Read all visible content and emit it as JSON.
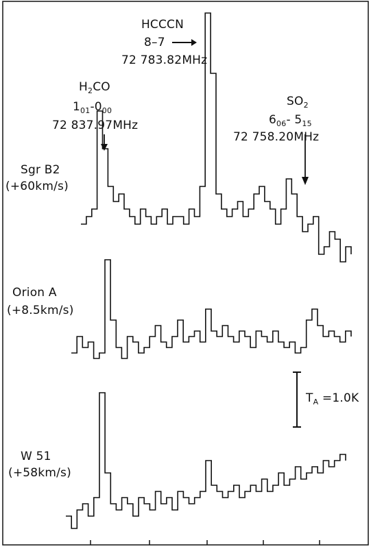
{
  "chart_data": {
    "type": "line",
    "title": "",
    "xlabel": "",
    "ylabel": "",
    "series": [
      {
        "name": "Sgr B2",
        "velocity": "(+60km/s)",
        "x": [
          0.0,
          0.02,
          0.04,
          0.06,
          0.08,
          0.1,
          0.12,
          0.14,
          0.16,
          0.18,
          0.2,
          0.22,
          0.24,
          0.26,
          0.28,
          0.3,
          0.32,
          0.34,
          0.36,
          0.38,
          0.4,
          0.42,
          0.44,
          0.46,
          0.48,
          0.5,
          0.52,
          0.54,
          0.56,
          0.58,
          0.6,
          0.62,
          0.64,
          0.66,
          0.68,
          0.7,
          0.72,
          0.74,
          0.76,
          0.78,
          0.8,
          0.82,
          0.84,
          0.86,
          0.88,
          0.9,
          0.92,
          0.94,
          0.96,
          0.98,
          1.0
        ],
        "values": [
          0.1,
          0.2,
          0.3,
          1.6,
          1.1,
          0.6,
          0.4,
          0.5,
          0.3,
          0.2,
          0.1,
          0.3,
          0.2,
          0.1,
          0.2,
          0.3,
          0.1,
          0.2,
          0.2,
          0.1,
          0.3,
          0.2,
          0.6,
          2.9,
          2.1,
          0.5,
          0.3,
          0.2,
          0.3,
          0.4,
          0.2,
          0.3,
          0.5,
          0.6,
          0.4,
          0.3,
          0.1,
          0.3,
          0.7,
          0.5,
          0.2,
          0.0,
          0.1,
          0.2,
          -0.3,
          -0.2,
          0.0,
          -0.1,
          -0.4,
          -0.2,
          -0.3
        ]
      },
      {
        "name": "Orion A",
        "velocity": "(+8.5km/s)",
        "x": [
          0.0,
          0.02,
          0.04,
          0.06,
          0.08,
          0.1,
          0.12,
          0.14,
          0.16,
          0.18,
          0.2,
          0.22,
          0.24,
          0.26,
          0.28,
          0.3,
          0.32,
          0.34,
          0.36,
          0.38,
          0.4,
          0.42,
          0.44,
          0.46,
          0.48,
          0.5,
          0.52,
          0.54,
          0.56,
          0.58,
          0.6,
          0.62,
          0.64,
          0.66,
          0.68,
          0.7,
          0.72,
          0.74,
          0.76,
          0.78,
          0.8,
          0.82,
          0.84,
          0.86,
          0.88,
          0.9,
          0.92,
          0.94,
          0.96,
          0.98,
          1.0
        ],
        "values": [
          0.0,
          0.3,
          0.1,
          0.2,
          -0.1,
          0.0,
          1.7,
          0.6,
          0.1,
          -0.1,
          0.3,
          0.2,
          0.0,
          0.1,
          0.3,
          0.5,
          0.2,
          0.1,
          0.3,
          0.6,
          0.2,
          0.3,
          0.4,
          0.2,
          0.8,
          0.4,
          0.3,
          0.5,
          0.3,
          0.2,
          0.4,
          0.3,
          0.1,
          0.4,
          0.3,
          0.2,
          0.4,
          0.2,
          0.1,
          0.2,
          0.0,
          0.1,
          0.6,
          0.8,
          0.5,
          0.3,
          0.4,
          0.3,
          0.2,
          0.4,
          0.3
        ]
      },
      {
        "name": "W 51",
        "velocity": "(+58km/s)",
        "x": [
          0.0,
          0.02,
          0.04,
          0.06,
          0.08,
          0.1,
          0.12,
          0.14,
          0.16,
          0.18,
          0.2,
          0.22,
          0.24,
          0.26,
          0.28,
          0.3,
          0.32,
          0.34,
          0.36,
          0.38,
          0.4,
          0.42,
          0.44,
          0.46,
          0.48,
          0.5,
          0.52,
          0.54,
          0.56,
          0.58,
          0.6,
          0.62,
          0.64,
          0.66,
          0.68,
          0.7,
          0.72,
          0.74,
          0.76,
          0.78,
          0.8,
          0.82,
          0.84,
          0.86,
          0.88,
          0.9,
          0.92,
          0.94,
          0.96,
          0.98,
          1.0
        ],
        "values": [
          -0.2,
          -0.4,
          -0.1,
          0.0,
          -0.2,
          0.1,
          1.8,
          0.5,
          0.0,
          -0.1,
          0.1,
          0.0,
          -0.2,
          0.1,
          0.0,
          -0.1,
          0.2,
          0.0,
          0.1,
          -0.1,
          0.2,
          0.1,
          0.0,
          0.1,
          0.2,
          0.7,
          0.3,
          0.2,
          0.1,
          0.2,
          0.3,
          0.1,
          0.2,
          0.3,
          0.2,
          0.4,
          0.2,
          0.3,
          0.5,
          0.3,
          0.4,
          0.6,
          0.4,
          0.5,
          0.6,
          0.5,
          0.7,
          0.6,
          0.7,
          0.8,
          0.7
        ]
      }
    ],
    "annotations": [
      {
        "id": "hcccn",
        "species": "HCCCN",
        "transition": "8–7",
        "frequency": "72 783.82MHz"
      },
      {
        "id": "h2co",
        "species_main": "H",
        "species_sub": "2",
        "species_tail": "CO",
        "t1": "1",
        "t1_sub": "01",
        "t1_sep": "-0",
        "t1_sub2": "00",
        "frequency": "72 837.97MHz"
      },
      {
        "id": "so2",
        "species_main": "SO",
        "species_sub": "2",
        "t1": "6",
        "t1_sub": "06",
        "t1_sep": "- 5",
        "t1_sub2": "15",
        "frequency": "72 758.20MHz"
      }
    ],
    "scale_bar": {
      "label_main": "T",
      "label_sub": "A",
      "label_tail": " =1.0K",
      "value": 1.0
    },
    "grid": false,
    "legend": "none"
  }
}
